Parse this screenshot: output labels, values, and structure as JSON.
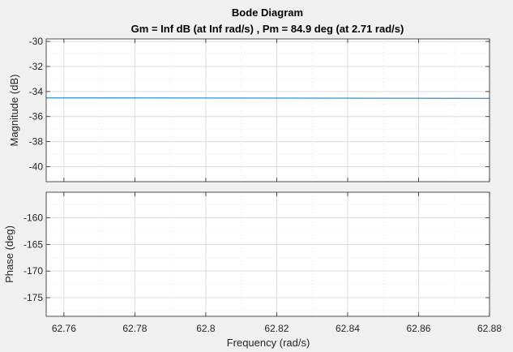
{
  "figure_background": "#f0f0f0",
  "axes_background": "#ffffff",
  "grid_color": "#dcdcdc",
  "axis_color": "#262626",
  "line_color": "#0072bd",
  "chart_data": {
    "type": "line",
    "title": "Bode Diagram",
    "subtitle": "Gm = Inf dB (at Inf rad/s) ,  Pm = 84.9 deg (at 2.71 rad/s)",
    "xlabel": "Frequency  (rad/s)",
    "xlim": [
      62.755,
      62.88
    ],
    "x_ticks": [
      62.76,
      62.78,
      62.8,
      62.82,
      62.84,
      62.86,
      62.88
    ],
    "x_tick_labels": [
      "62.76",
      "62.78",
      "62.8",
      "62.82",
      "62.84",
      "62.86",
      "62.88"
    ],
    "x_minor_ticks": [
      62.77,
      62.79,
      62.81,
      62.83,
      62.85,
      62.87
    ],
    "grid": true,
    "panels": [
      {
        "ylabel": "Magnitude (dB)",
        "ylim": [
          -41.2,
          -29.8
        ],
        "y_ticks": [
          -40,
          -38,
          -36,
          -34,
          -32,
          -30
        ],
        "y_tick_labels": [
          "-40",
          "-38",
          "-36",
          "-34",
          "-32",
          "-30"
        ],
        "y_minor_ticks": [
          -39,
          -37,
          -35,
          -33,
          -31
        ],
        "series": [
          {
            "x": [
              62.755,
              62.88
            ],
            "y": [
              -34.51,
              -34.54
            ]
          }
        ]
      },
      {
        "ylabel": "Phase (deg)",
        "ylim": [
          -178.5,
          -155.2
        ],
        "y_ticks": [
          -175,
          -170,
          -165,
          -160
        ],
        "y_tick_labels": [
          "-175",
          "-170",
          "-165",
          "-160"
        ],
        "y_minor_ticks": [
          -177.5,
          -172.5,
          -167.5,
          -162.5,
          -157.5
        ],
        "series": []
      }
    ]
  }
}
